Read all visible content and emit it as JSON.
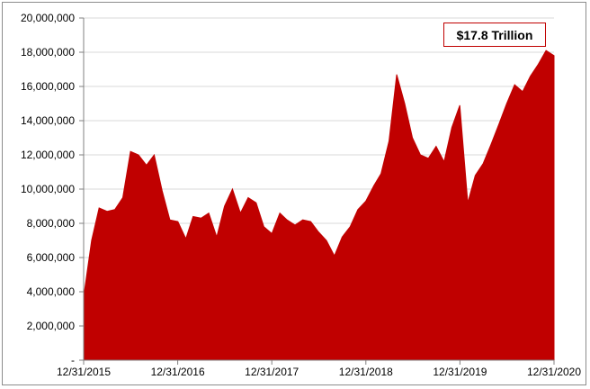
{
  "chart_data": {
    "type": "area",
    "title": "",
    "xlabel": "",
    "ylabel": "",
    "annotation": "$17.8 Trillion",
    "x_tick_labels": [
      "12/31/2015",
      "12/31/2016",
      "12/31/2017",
      "12/31/2018",
      "12/31/2019",
      "12/31/2020"
    ],
    "y_tick_labels": [
      "-",
      "2,000,000",
      "4,000,000",
      "6,000,000",
      "8,000,000",
      "10,000,000",
      "12,000,000",
      "14,000,000",
      "16,000,000",
      "18,000,000",
      "20,000,000"
    ],
    "ylim": [
      0,
      20000000
    ],
    "xlim": [
      "2015-12-31",
      "2020-12-31"
    ],
    "grid": "horizontal",
    "legend": "none",
    "color": "#c00000",
    "series": [
      {
        "x": [
          "2015-12-31",
          "2016-01-31",
          "2016-02-29",
          "2016-03-31",
          "2016-04-30",
          "2016-05-31",
          "2016-06-30",
          "2016-07-31",
          "2016-08-31",
          "2016-09-30",
          "2016-10-31",
          "2016-11-30",
          "2016-12-31",
          "2017-01-31",
          "2017-02-28",
          "2017-03-31",
          "2017-04-30",
          "2017-05-31",
          "2017-06-30",
          "2017-07-31",
          "2017-08-31",
          "2017-09-30",
          "2017-10-31",
          "2017-11-30",
          "2017-12-31",
          "2018-01-31",
          "2018-02-28",
          "2018-03-31",
          "2018-04-30",
          "2018-05-31",
          "2018-06-30",
          "2018-07-31",
          "2018-08-31",
          "2018-09-30",
          "2018-10-31",
          "2018-11-30",
          "2018-12-31",
          "2019-01-31",
          "2019-02-28",
          "2019-03-31",
          "2019-04-30",
          "2019-05-31",
          "2019-06-30",
          "2019-07-31",
          "2019-08-31",
          "2019-09-30",
          "2019-10-31",
          "2019-11-30",
          "2019-12-31",
          "2020-01-31",
          "2020-02-29",
          "2020-03-31",
          "2020-04-30",
          "2020-05-31",
          "2020-06-30",
          "2020-07-31",
          "2020-08-31",
          "2020-09-30",
          "2020-10-31",
          "2020-11-30",
          "2020-12-31"
        ],
        "values": [
          3700000,
          7000000,
          8900000,
          8700000,
          8800000,
          9500000,
          12200000,
          12000000,
          11400000,
          12000000,
          9900000,
          8200000,
          8100000,
          7100000,
          8400000,
          8300000,
          8600000,
          7200000,
          9000000,
          10000000,
          8600000,
          9500000,
          9200000,
          7800000,
          7400000,
          8600000,
          8200000,
          7900000,
          8200000,
          8100000,
          7500000,
          7000000,
          6100000,
          7200000,
          7800000,
          8800000,
          9300000,
          10200000,
          10900000,
          12800000,
          16700000,
          15000000,
          13000000,
          12000000,
          11800000,
          12500000,
          11600000,
          13600000,
          14900000,
          9200000,
          10800000,
          11500000,
          12600000,
          13800000,
          15000000,
          16100000,
          15700000,
          16600000,
          17300000,
          18100000,
          17800000
        ]
      }
    ]
  }
}
